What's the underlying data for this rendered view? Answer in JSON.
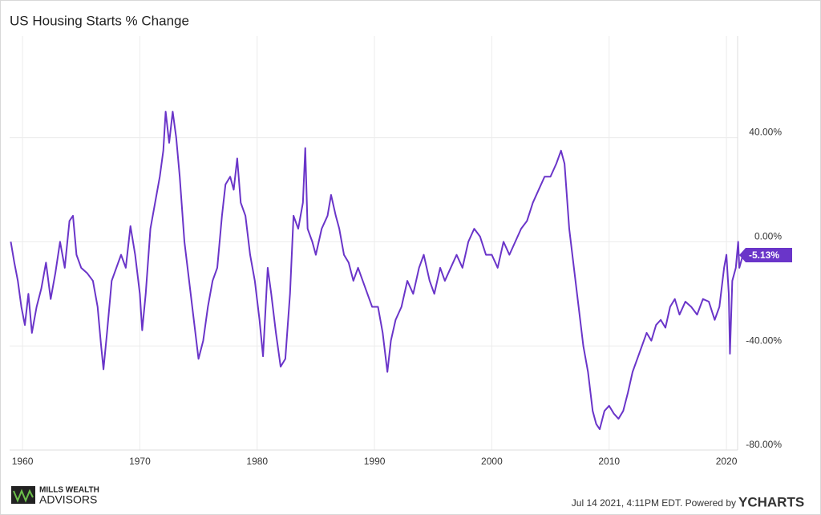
{
  "chart_data": {
    "type": "line",
    "title": "US Housing Starts % Change",
    "x": [
      1959.0,
      1959.3,
      1959.6,
      1959.9,
      1960.2,
      1960.5,
      1960.8,
      1961.2,
      1961.6,
      1962.0,
      1962.4,
      1962.8,
      1963.2,
      1963.6,
      1964.0,
      1964.3,
      1964.6,
      1965.0,
      1965.5,
      1966.0,
      1966.4,
      1966.7,
      1966.9,
      1967.2,
      1967.6,
      1968.0,
      1968.4,
      1968.8,
      1969.2,
      1969.6,
      1970.0,
      1970.2,
      1970.5,
      1970.9,
      1971.3,
      1971.7,
      1972.0,
      1972.2,
      1972.5,
      1972.8,
      1973.1,
      1973.4,
      1973.8,
      1974.2,
      1974.6,
      1975.0,
      1975.4,
      1975.8,
      1976.2,
      1976.6,
      1977.0,
      1977.3,
      1977.7,
      1978.0,
      1978.3,
      1978.6,
      1979.0,
      1979.4,
      1979.8,
      1980.2,
      1980.5,
      1980.9,
      1981.2,
      1981.6,
      1982.0,
      1982.4,
      1982.8,
      1983.1,
      1983.5,
      1983.9,
      1984.1,
      1984.3,
      1984.7,
      1985.0,
      1985.5,
      1986.0,
      1986.3,
      1986.7,
      1987.0,
      1987.4,
      1987.8,
      1988.2,
      1988.6,
      1989.0,
      1989.4,
      1989.8,
      1990.3,
      1990.7,
      1991.1,
      1991.4,
      1991.8,
      1992.3,
      1992.8,
      1993.3,
      1993.8,
      1994.2,
      1994.7,
      1995.1,
      1995.6,
      1996.0,
      1996.5,
      1997.0,
      1997.5,
      1998.0,
      1998.5,
      1999.0,
      1999.5,
      2000.0,
      2000.5,
      2001.0,
      2001.5,
      2002.0,
      2002.5,
      2003.0,
      2003.5,
      2004.0,
      2004.5,
      2005.0,
      2005.5,
      2005.9,
      2006.2,
      2006.6,
      2007.0,
      2007.4,
      2007.8,
      2008.2,
      2008.6,
      2008.9,
      2009.2,
      2009.6,
      2010.0,
      2010.4,
      2010.8,
      2011.2,
      2011.6,
      2012.0,
      2012.4,
      2012.8,
      2013.2,
      2013.6,
      2014.0,
      2014.4,
      2014.8,
      2015.2,
      2015.6,
      2016.0,
      2016.5,
      2017.0,
      2017.5,
      2018.0,
      2018.5,
      2019.0,
      2019.4,
      2019.8,
      2020.0,
      2020.2,
      2020.3,
      2020.5,
      2020.8,
      2021.0,
      2021.1,
      2021.4
    ],
    "series": [
      {
        "name": "US Housing Starts % Change",
        "color": "#6a35c9",
        "values": [
          0,
          -8,
          -15,
          -25,
          -32,
          -20,
          -35,
          -25,
          -18,
          -8,
          -22,
          -12,
          0,
          -10,
          8,
          10,
          -5,
          -10,
          -12,
          -15,
          -25,
          -40,
          -49,
          -35,
          -15,
          -10,
          -5,
          -10,
          6,
          -5,
          -20,
          -34,
          -20,
          5,
          15,
          25,
          35,
          50,
          38,
          50,
          40,
          25,
          0,
          -15,
          -30,
          -45,
          -38,
          -25,
          -15,
          -10,
          10,
          22,
          25,
          20,
          32,
          15,
          10,
          -5,
          -15,
          -30,
          -44,
          -10,
          -20,
          -35,
          -48,
          -45,
          -20,
          10,
          5,
          15,
          36,
          5,
          0,
          -5,
          5,
          10,
          18,
          10,
          5,
          -5,
          -8,
          -15,
          -10,
          -15,
          -20,
          -25,
          -25,
          -35,
          -50,
          -38,
          -30,
          -25,
          -15,
          -20,
          -10,
          -5,
          -15,
          -20,
          -10,
          -15,
          -10,
          -5,
          -10,
          0,
          5,
          2,
          -5,
          -5,
          -10,
          0,
          -5,
          0,
          5,
          8,
          15,
          20,
          25,
          25,
          30,
          35,
          30,
          5,
          -10,
          -25,
          -40,
          -50,
          -65,
          -70,
          -72,
          -65,
          -63,
          -66,
          -68,
          -65,
          -58,
          -50,
          -45,
          -40,
          -35,
          -38,
          -32,
          -30,
          -33,
          -25,
          -22,
          -28,
          -23,
          -25,
          -28,
          -22,
          -23,
          -30,
          -25,
          -10,
          -5,
          -20,
          -43,
          -15,
          -10,
          0,
          -10,
          -5.13
        ]
      }
    ],
    "xlim": [
      1958.9,
      2021.5
    ],
    "xticks": [
      1960,
      1970,
      1980,
      1990,
      2000,
      2010,
      2020
    ],
    "ylim": [
      -80,
      79
    ],
    "yticks": [
      {
        "value": 40,
        "label": "40.00%"
      },
      {
        "value": 0,
        "label": "0.00%"
      },
      {
        "value": -40,
        "label": "-40.00%"
      },
      {
        "value": -80,
        "label": "-80.00%"
      }
    ],
    "grid": true,
    "annotation": {
      "value": -5.13,
      "label": "-5.13%"
    },
    "footer": "Jul 14 2021, 4:11PM EDT. Powered by",
    "brand": "YCHARTS",
    "logo_top": "MILLS WEALTH",
    "logo_bottom": "ADVISORS"
  }
}
